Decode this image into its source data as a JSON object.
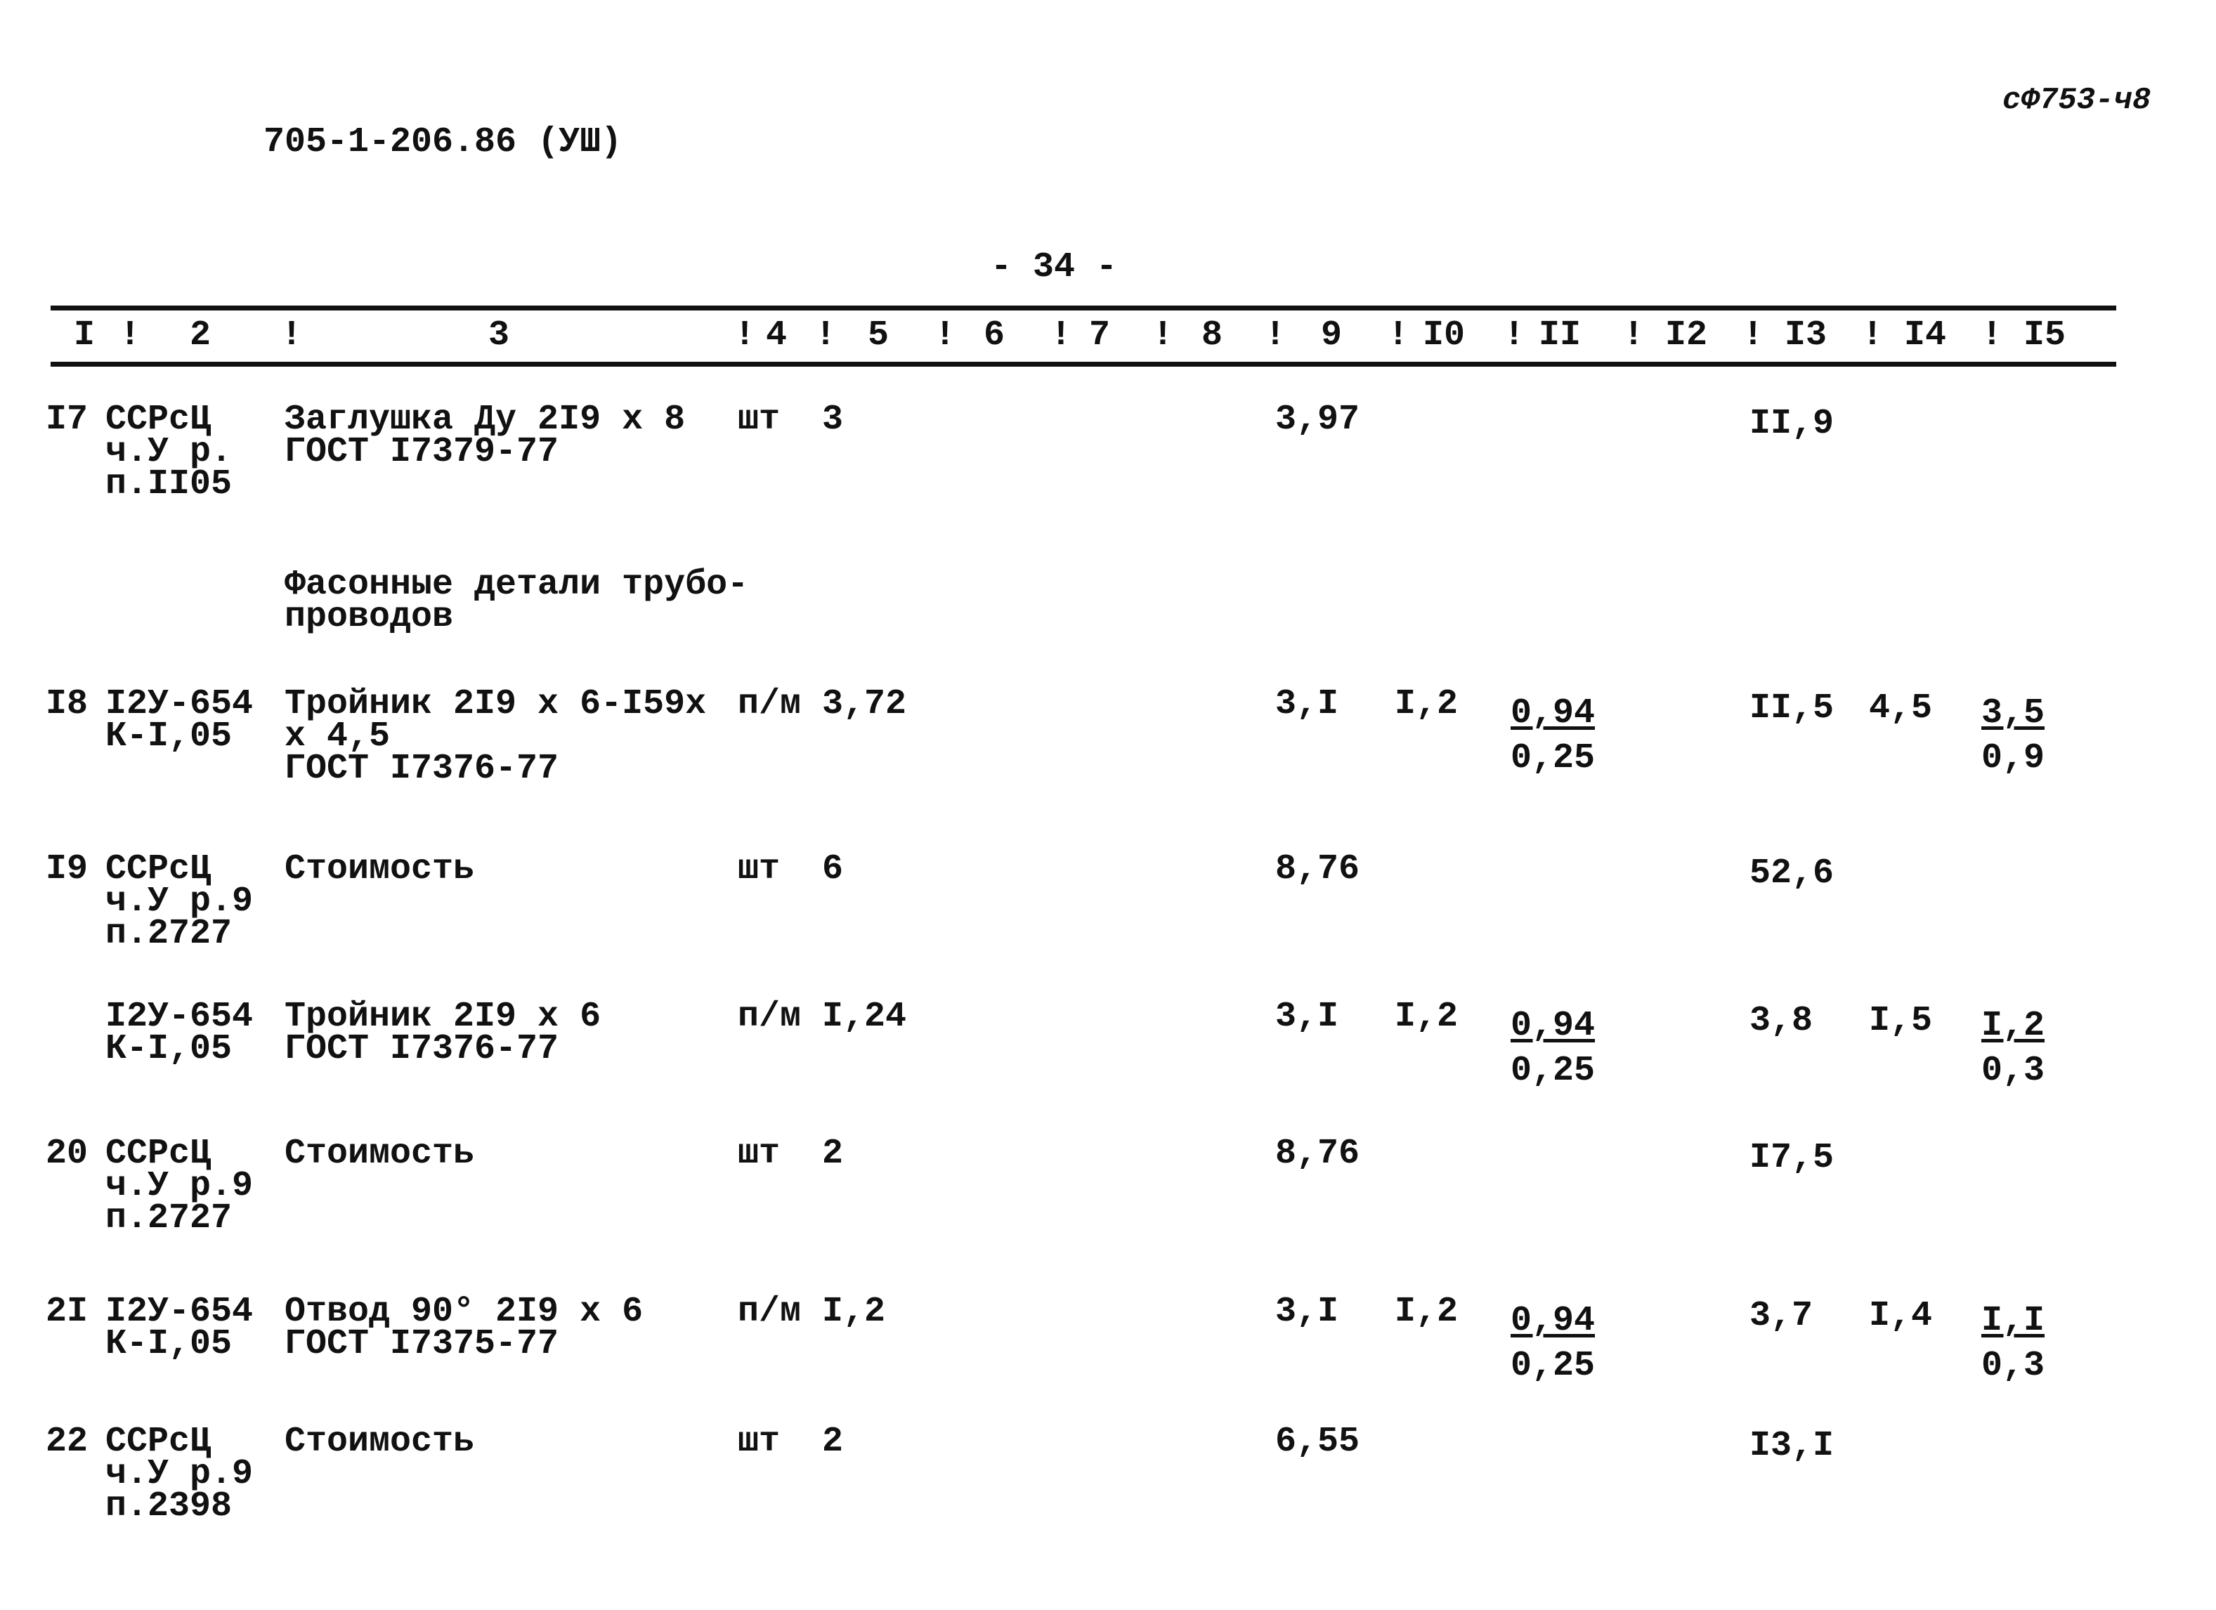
{
  "header": {
    "doc_code": "705-1-206.86 (УШ)",
    "stamp": "сФ753-ч8",
    "page_number": "- 34 -"
  },
  "table": {
    "columns": [
      "I",
      "2",
      "3",
      "4",
      "5",
      "6",
      "7",
      "8",
      "9",
      "I0",
      "II",
      "I2",
      "I3",
      "I4",
      "I5"
    ],
    "rows": [
      {
        "no": "I7",
        "code": [
          "ССРсЦ",
          "ч.У р.",
          "п.II05"
        ],
        "name": [
          "Заглушка Ду 2I9 х 8",
          "ГОСТ I7379-77"
        ],
        "unit": "шт",
        "qty": "3",
        "c9": "3,97",
        "c10": "",
        "c11": null,
        "c13": "II,9",
        "c14": "",
        "c15": null
      },
      {
        "no": "",
        "code": [],
        "name": [
          "Фасонные детали трубо-",
          "проводов"
        ],
        "unit": "",
        "qty": "",
        "c9": "",
        "c10": "",
        "c11": null,
        "c13": "",
        "c14": "",
        "c15": null
      },
      {
        "no": "I8",
        "code": [
          "I2У-654",
          "К-I,05"
        ],
        "name": [
          "Тройник 2I9 х 6-I59х",
          "х 4,5",
          "ГОСТ I7376-77"
        ],
        "unit": "п/м",
        "qty": "3,72",
        "c9": "3,I",
        "c10": "I,2",
        "c11": {
          "num": "0,94",
          "den": "0,25"
        },
        "c13": "II,5",
        "c14": "4,5",
        "c15": {
          "num": "3,5",
          "den": "0,9"
        }
      },
      {
        "no": "I9",
        "code": [
          "ССРсЦ",
          "ч.У р.9",
          "п.2727"
        ],
        "name": [
          "Стоимость"
        ],
        "unit": "шт",
        "qty": "6",
        "c9": "8,76",
        "c10": "",
        "c11": null,
        "c13": "52,6",
        "c14": "",
        "c15": null
      },
      {
        "no": "",
        "code": [
          "I2У-654",
          "К-I,05"
        ],
        "name": [
          "Тройник 2I9 х 6",
          "ГОСТ I7376-77"
        ],
        "unit": "п/м",
        "qty": "I,24",
        "c9": "3,I",
        "c10": "I,2",
        "c11": {
          "num": "0,94",
          "den": "0,25"
        },
        "c13": "3,8",
        "c14": "I,5",
        "c15": {
          "num": "I,2",
          "den": "0,3"
        }
      },
      {
        "no": "20",
        "code": [
          "ССРсЦ",
          "ч.У р.9",
          "п.2727"
        ],
        "name": [
          "Стоимость"
        ],
        "unit": "шт",
        "qty": "2",
        "c9": "8,76",
        "c10": "",
        "c11": null,
        "c13": "I7,5",
        "c14": "",
        "c15": null
      },
      {
        "no": "2I",
        "code": [
          "I2У-654",
          "К-I,05"
        ],
        "name": [
          "Отвод 90° 2I9 х 6",
          "ГОСТ I7375-77"
        ],
        "unit": "п/м",
        "qty": "I,2",
        "c9": "3,I",
        "c10": "I,2",
        "c11": {
          "num": "0,94",
          "den": "0,25"
        },
        "c13": "3,7",
        "c14": "I,4",
        "c15": {
          "num": "I,I",
          "den": "0,3"
        }
      },
      {
        "no": "22",
        "code": [
          "ССРсЦ",
          "ч.У р.9",
          "п.2398"
        ],
        "name": [
          "Стоимость"
        ],
        "unit": "шт",
        "qty": "2",
        "c9": "6,55",
        "c10": "",
        "c11": null,
        "c13": "I3,I",
        "c14": "",
        "c15": null
      }
    ]
  }
}
